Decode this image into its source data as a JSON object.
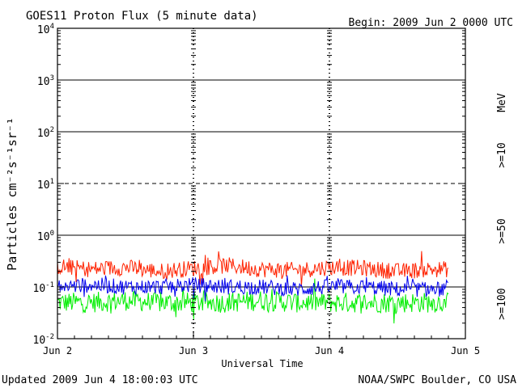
{
  "header": {
    "title": "GOES11 Proton Flux (5 minute data)",
    "begin": "Begin: 2009 Jun 2 0000 UTC"
  },
  "footer": {
    "updated": "Updated 2009 Jun  4 18:00:03 UTC",
    "credit": "NOAA/SWPC Boulder, CO USA"
  },
  "legend": {
    "unit": "MeV",
    "position": "right"
  },
  "colors": {
    "p10": "#ff2200",
    "p50": "#0000ee",
    "p100": "#00ee00",
    "axes": "#000000"
  },
  "chart_data": {
    "type": "line",
    "title": "GOES11 Proton Flux (5 minute data)",
    "xlabel": "Universal Time",
    "ylabel": "Particles cm⁻²s⁻¹sr⁻¹",
    "yscale": "log",
    "ylim": [
      0.01,
      10000
    ],
    "xlim": [
      "2009-06-02 00:00",
      "2009-06-05 00:00"
    ],
    "y_ticks": [
      {
        "base": "10",
        "exp": "-2"
      },
      {
        "base": "10",
        "exp": "-1"
      },
      {
        "base": "10",
        "exp": "0"
      },
      {
        "base": "10",
        "exp": "1"
      },
      {
        "base": "10",
        "exp": "2"
      },
      {
        "base": "10",
        "exp": "3"
      },
      {
        "base": "10",
        "exp": "4"
      }
    ],
    "x_ticks": [
      "Jun 2",
      "Jun 3",
      "Jun 4",
      "Jun 5"
    ],
    "grid": true,
    "series": [
      {
        "name": ">=10",
        "x": [
          "2009-06-02 00:00",
          "2009-06-02 06:00",
          "2009-06-02 12:00",
          "2009-06-02 18:00",
          "2009-06-03 00:00",
          "2009-06-03 06:00",
          "2009-06-03 12:00",
          "2009-06-03 18:00",
          "2009-06-04 00:00",
          "2009-06-04 06:00",
          "2009-06-04 12:00",
          "2009-06-04 18:00"
        ],
        "y": [
          0.25,
          0.22,
          0.24,
          0.2,
          0.23,
          0.26,
          0.22,
          0.21,
          0.24,
          0.23,
          0.2,
          0.22
        ]
      },
      {
        "name": ">=50",
        "x": [
          "2009-06-02 00:00",
          "2009-06-02 06:00",
          "2009-06-02 12:00",
          "2009-06-02 18:00",
          "2009-06-03 00:00",
          "2009-06-03 06:00",
          "2009-06-03 12:00",
          "2009-06-03 18:00",
          "2009-06-04 00:00",
          "2009-06-04 06:00",
          "2009-06-04 12:00",
          "2009-06-04 18:00"
        ],
        "y": [
          0.1,
          0.11,
          0.1,
          0.1,
          0.11,
          0.1,
          0.1,
          0.09,
          0.1,
          0.1,
          0.09,
          0.09
        ]
      },
      {
        "name": ">=100",
        "x": [
          "2009-06-02 00:00",
          "2009-06-02 06:00",
          "2009-06-02 12:00",
          "2009-06-02 18:00",
          "2009-06-03 00:00",
          "2009-06-03 06:00",
          "2009-06-03 12:00",
          "2009-06-03 18:00",
          "2009-06-04 00:00",
          "2009-06-04 06:00",
          "2009-06-04 12:00",
          "2009-06-04 18:00"
        ],
        "y": [
          0.05,
          0.05,
          0.055,
          0.05,
          0.05,
          0.05,
          0.055,
          0.05,
          0.05,
          0.05,
          0.05,
          0.05
        ]
      }
    ]
  }
}
